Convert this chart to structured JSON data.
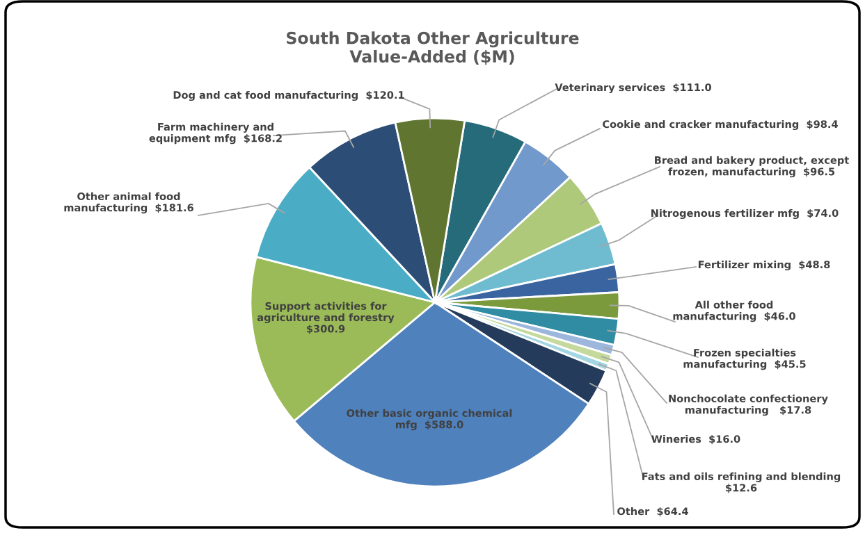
{
  "chart_data": {
    "type": "pie",
    "title": "South Dakota Other Agriculture\nValue-Added ($M)",
    "categories": [
      "Veterinary services",
      "Cookie and cracker manufacturing",
      "Bread and bakery product, except\nfrozen, manufacturing",
      "Nitrogenous fertilizer mfg",
      "Fertilizer mixing",
      "All other food\nmanufacturing",
      "Frozen specialties\nmanufacturing",
      "Nonchocolate confectionery\nmanufacturing ",
      "Wineries",
      "Fats and oils refining and blending\n",
      "Other",
      "Other basic organic chemical\nmfg",
      "Support activities for\nagriculture and forestry\n",
      "Other animal food\nmanufacturing",
      "Farm machinery and\nequipment mfg",
      "Dog and cat food manufacturing"
    ],
    "values": [
      111.0,
      98.4,
      96.5,
      74.0,
      48.8,
      46.0,
      45.5,
      17.8,
      16.0,
      12.6,
      64.4,
      588.0,
      300.9,
      181.6,
      168.2,
      120.1
    ],
    "value_labels": [
      "$111.0",
      "$98.4",
      "$96.5",
      "$74.0",
      "$48.8",
      "$46.0",
      "$45.5",
      "$17.8",
      "$16.0",
      "$12.6",
      "$64.4",
      "$588.0",
      "$300.9",
      "$181.6",
      "$168.2",
      "$120.1"
    ],
    "colors": [
      "#266b7a",
      "#7299cb",
      "#aec97a",
      "#6fbcd0",
      "#3a64a0",
      "#7a9a3c",
      "#2f8ca3",
      "#9cb6dc",
      "#c4d99b",
      "#a3d6e2",
      "#253b5c",
      "#4f81bd",
      "#9bbb59",
      "#4bacc6",
      "#2c4d75",
      "#5f7530"
    ],
    "legend": false
  }
}
